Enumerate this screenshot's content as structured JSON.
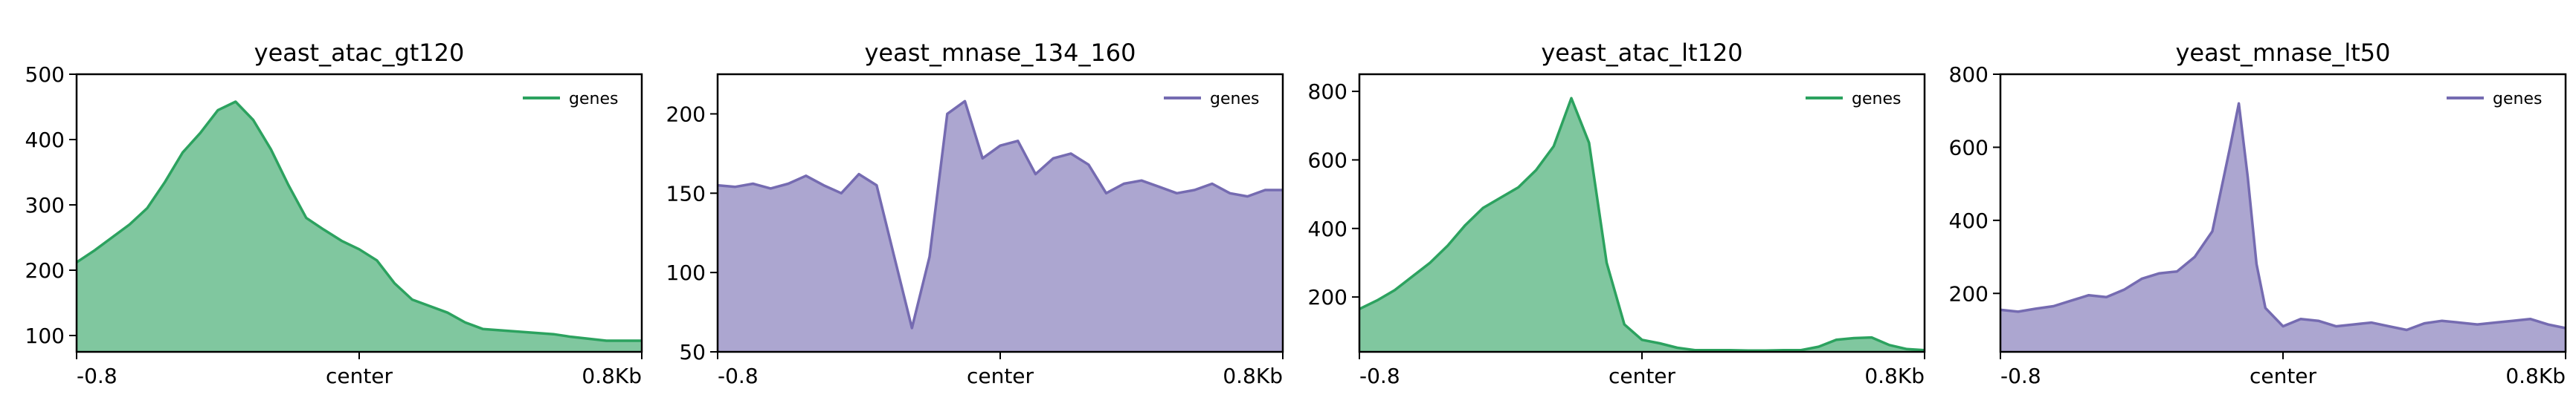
{
  "chart_data": [
    {
      "type": "area",
      "title": "yeast_atac_gt120",
      "xlabel": "",
      "ylabel": "",
      "x_ticks": [
        "-0.8",
        "center",
        "0.8Kb"
      ],
      "ylim": [
        75,
        500
      ],
      "y_ticks": [
        100,
        200,
        300,
        400,
        500
      ],
      "legend": "top-right",
      "grid": false,
      "series": [
        {
          "name": "genes",
          "color": "#2ca25f",
          "x": [
            -0.8,
            -0.75,
            -0.7,
            -0.65,
            -0.6,
            -0.55,
            -0.5,
            -0.45,
            -0.4,
            -0.35,
            -0.3,
            -0.25,
            -0.2,
            -0.15,
            -0.1,
            -0.05,
            0,
            0.05,
            0.1,
            0.15,
            0.2,
            0.25,
            0.3,
            0.35,
            0.4,
            0.45,
            0.5,
            0.55,
            0.6,
            0.65,
            0.7,
            0.75,
            0.8
          ],
          "values": [
            212,
            230,
            250,
            270,
            295,
            335,
            380,
            410,
            445,
            458,
            430,
            385,
            330,
            280,
            262,
            245,
            232,
            215,
            180,
            155,
            145,
            135,
            120,
            110,
            108,
            106,
            104,
            102,
            98,
            95,
            92,
            92,
            92
          ]
        }
      ]
    },
    {
      "type": "area",
      "title": "yeast_mnase_134_160",
      "xlabel": "",
      "ylabel": "",
      "x_ticks": [
        "-0.8",
        "center",
        "0.8Kb"
      ],
      "ylim": [
        50,
        225
      ],
      "y_ticks": [
        50,
        100,
        150,
        200
      ],
      "legend": "top-right",
      "grid": false,
      "series": [
        {
          "name": "genes",
          "color": "#756bb1",
          "x": [
            -0.8,
            -0.75,
            -0.7,
            -0.65,
            -0.6,
            -0.55,
            -0.5,
            -0.45,
            -0.4,
            -0.35,
            -0.3,
            -0.25,
            -0.2,
            -0.15,
            -0.1,
            -0.05,
            0,
            0.05,
            0.1,
            0.15,
            0.2,
            0.25,
            0.3,
            0.35,
            0.4,
            0.45,
            0.5,
            0.55,
            0.6,
            0.65,
            0.7,
            0.75,
            0.8
          ],
          "values": [
            155,
            154,
            156,
            153,
            156,
            161,
            155,
            150,
            162,
            155,
            110,
            65,
            110,
            200,
            208,
            172,
            180,
            183,
            162,
            172,
            175,
            168,
            150,
            156,
            158,
            154,
            150,
            152,
            156,
            150,
            148,
            152,
            152
          ]
        }
      ]
    },
    {
      "type": "area",
      "title": "yeast_atac_lt120",
      "xlabel": "",
      "ylabel": "",
      "x_ticks": [
        "-0.8",
        "center",
        "0.8Kb"
      ],
      "ylim": [
        40,
        850
      ],
      "y_ticks": [
        200,
        400,
        600,
        800
      ],
      "legend": "top-right",
      "grid": false,
      "series": [
        {
          "name": "genes",
          "color": "#2ca25f",
          "x": [
            -0.8,
            -0.75,
            -0.7,
            -0.65,
            -0.6,
            -0.55,
            -0.5,
            -0.45,
            -0.4,
            -0.35,
            -0.3,
            -0.25,
            -0.2,
            -0.15,
            -0.1,
            -0.05,
            0,
            0.05,
            0.1,
            0.15,
            0.2,
            0.25,
            0.3,
            0.35,
            0.4,
            0.45,
            0.5,
            0.55,
            0.6,
            0.65,
            0.7,
            0.75,
            0.8
          ],
          "values": [
            165,
            190,
            220,
            260,
            300,
            350,
            410,
            460,
            490,
            520,
            570,
            640,
            780,
            650,
            300,
            120,
            75,
            65,
            52,
            45,
            45,
            45,
            44,
            44,
            45,
            45,
            55,
            75,
            80,
            82,
            60,
            48,
            45
          ]
        }
      ]
    },
    {
      "type": "area",
      "title": "yeast_mnase_lt50",
      "xlabel": "",
      "ylabel": "",
      "x_ticks": [
        "-0.8",
        "center",
        "0.8Kb"
      ],
      "ylim": [
        40,
        800
      ],
      "y_ticks": [
        200,
        400,
        600,
        800
      ],
      "legend": "top-right",
      "grid": false,
      "series": [
        {
          "name": "genes",
          "color": "#756bb1",
          "x": [
            -0.8,
            -0.75,
            -0.7,
            -0.65,
            -0.6,
            -0.55,
            -0.5,
            -0.45,
            -0.4,
            -0.35,
            -0.3,
            -0.25,
            -0.2,
            -0.15,
            -0.125,
            -0.1,
            -0.075,
            -0.05,
            0,
            0.05,
            0.1,
            0.15,
            0.2,
            0.25,
            0.3,
            0.35,
            0.4,
            0.45,
            0.5,
            0.55,
            0.6,
            0.65,
            0.7,
            0.75,
            0.8
          ],
          "values": [
            155,
            150,
            158,
            165,
            180,
            195,
            190,
            210,
            240,
            255,
            260,
            300,
            370,
            600,
            720,
            520,
            280,
            160,
            110,
            130,
            125,
            110,
            115,
            120,
            110,
            100,
            118,
            125,
            120,
            115,
            120,
            125,
            130,
            115,
            105
          ]
        }
      ]
    }
  ]
}
